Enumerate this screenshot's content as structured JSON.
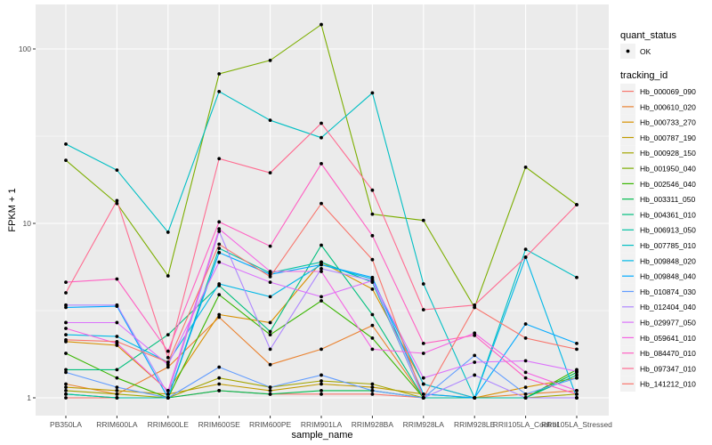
{
  "chart_data": {
    "type": "line",
    "title": "",
    "xlabel": "sample_name",
    "ylabel": "FPKM + 1",
    "yscale": "log10",
    "ylim": [
      0.8,
      160
    ],
    "yticks": [
      1,
      10,
      100
    ],
    "ytick_labels": [
      "1",
      "10",
      "100"
    ],
    "grid": true,
    "legend_position": "right",
    "categories": [
      "PB350LA",
      "RRIM600LA",
      "RRIM600LE",
      "RRIM600SE",
      "RRIM600PE",
      "RRIM901LA",
      "RRIM928BA",
      "RRIM928LA",
      "RRIM928LE",
      "RRII105LA_Control",
      "RRII105LA_Stressed"
    ],
    "legend_shape": {
      "title": "quant_status",
      "entries": [
        "OK"
      ]
    },
    "legend_color_title": "tracking_id",
    "series": [
      {
        "name": "Hb_000069_090",
        "color": "#F8766D",
        "values": [
          1.0,
          1.0,
          1.0,
          1.1,
          1.05,
          1.05,
          1.05,
          1.0,
          1.0,
          1.0,
          1.0
        ]
      },
      {
        "name": "Hb_000610_020",
        "color": "#EA8331",
        "values": [
          1.2,
          1.05,
          1.5,
          2.9,
          1.55,
          1.9,
          2.6,
          1.0,
          1.0,
          1.05,
          1.1
        ]
      },
      {
        "name": "Hb_000733_270",
        "color": "#D89000",
        "values": [
          2.1,
          2.0,
          1.1,
          3.0,
          2.7,
          6.0,
          4.2,
          1.2,
          1.0,
          1.15,
          1.3
        ]
      },
      {
        "name": "Hb_000787_190",
        "color": "#C09B00",
        "values": [
          1.15,
          1.1,
          1.05,
          1.2,
          1.1,
          1.2,
          1.15,
          1.05,
          1.0,
          1.0,
          1.0
        ]
      },
      {
        "name": "Hb_000928_150",
        "color": "#A3A500",
        "values": [
          1.1,
          1.05,
          1.0,
          1.3,
          1.15,
          1.25,
          1.2,
          1.0,
          1.0,
          1.0,
          1.05
        ]
      },
      {
        "name": "Hb_001950_040",
        "color": "#7CAE00",
        "values": [
          23.0,
          13.0,
          5.0,
          72.0,
          86.0,
          138.0,
          11.3,
          10.4,
          3.3,
          21.0,
          12.8
        ]
      },
      {
        "name": "Hb_002546_040",
        "color": "#39B600",
        "values": [
          1.8,
          1.3,
          1.0,
          3.9,
          2.3,
          3.6,
          2.2,
          1.0,
          1.0,
          1.0,
          1.45
        ]
      },
      {
        "name": "Hb_003311_050",
        "color": "#00BB4E",
        "values": [
          1.05,
          1.0,
          1.0,
          1.1,
          1.05,
          1.1,
          1.1,
          1.0,
          1.0,
          1.0,
          1.4
        ]
      },
      {
        "name": "Hb_004361_010",
        "color": "#00BF7D",
        "values": [
          1.45,
          1.45,
          2.3,
          4.4,
          2.4,
          7.5,
          3.0,
          1.0,
          1.0,
          1.0,
          1.35
        ]
      },
      {
        "name": "Hb_006913_050",
        "color": "#00C1A3",
        "values": [
          1.05,
          1.0,
          1.0,
          7.2,
          5.2,
          6.0,
          4.6,
          1.0,
          1.0,
          1.0,
          1.0
        ]
      },
      {
        "name": "Hb_007785_010",
        "color": "#00BFC4",
        "values": [
          28.5,
          20.2,
          8.9,
          57.0,
          39.0,
          31.0,
          56.0,
          4.5,
          1.0,
          7.1,
          4.9
        ]
      },
      {
        "name": "Hb_009848_020",
        "color": "#00B8E7",
        "values": [
          2.3,
          2.25,
          1.6,
          4.5,
          3.8,
          5.8,
          4.8,
          1.2,
          1.0,
          6.4,
          1.0
        ]
      },
      {
        "name": "Hb_009848_040",
        "color": "#00A9FF",
        "values": [
          3.3,
          3.35,
          1.0,
          6.8,
          5.1,
          5.8,
          4.9,
          1.05,
          1.0,
          2.65,
          2.05
        ]
      },
      {
        "name": "Hb_010874_030",
        "color": "#619CFF",
        "values": [
          1.4,
          1.15,
          1.0,
          1.5,
          1.15,
          1.35,
          1.1,
          1.0,
          1.75,
          1.05,
          1.3
        ]
      },
      {
        "name": "Hb_012404_040",
        "color": "#AE87FF",
        "values": [
          3.4,
          3.4,
          1.05,
          9.0,
          1.9,
          5.5,
          4.7,
          1.0,
          1.35,
          1.0,
          1.0
        ]
      },
      {
        "name": "Hb_029977_050",
        "color": "#DB72FB",
        "values": [
          2.7,
          2.7,
          1.55,
          6.0,
          4.6,
          3.8,
          4.7,
          1.3,
          1.6,
          1.63,
          1.42
        ]
      },
      {
        "name": "Hb_059641_010",
        "color": "#F564E3",
        "values": [
          2.5,
          2.05,
          1.1,
          9.3,
          5.3,
          5.3,
          1.9,
          1.8,
          2.35,
          1.4,
          1.1
        ]
      },
      {
        "name": "Hb_084470_010",
        "color": "#FF61C3",
        "values": [
          4.6,
          4.8,
          1.85,
          10.2,
          7.4,
          22.0,
          8.5,
          2.05,
          2.28,
          1.3,
          1.05
        ]
      },
      {
        "name": "Hb_097347_010",
        "color": "#FF6C91",
        "values": [
          4.0,
          13.5,
          1.7,
          23.5,
          19.5,
          37.5,
          15.5,
          3.2,
          3.4,
          6.4,
          12.8
        ]
      },
      {
        "name": "Hb_141212_010",
        "color": "#F8766D",
        "values": [
          2.15,
          2.1,
          1.6,
          7.6,
          4.95,
          13.0,
          6.2,
          1.0,
          3.3,
          2.2,
          1.9
        ]
      }
    ]
  }
}
